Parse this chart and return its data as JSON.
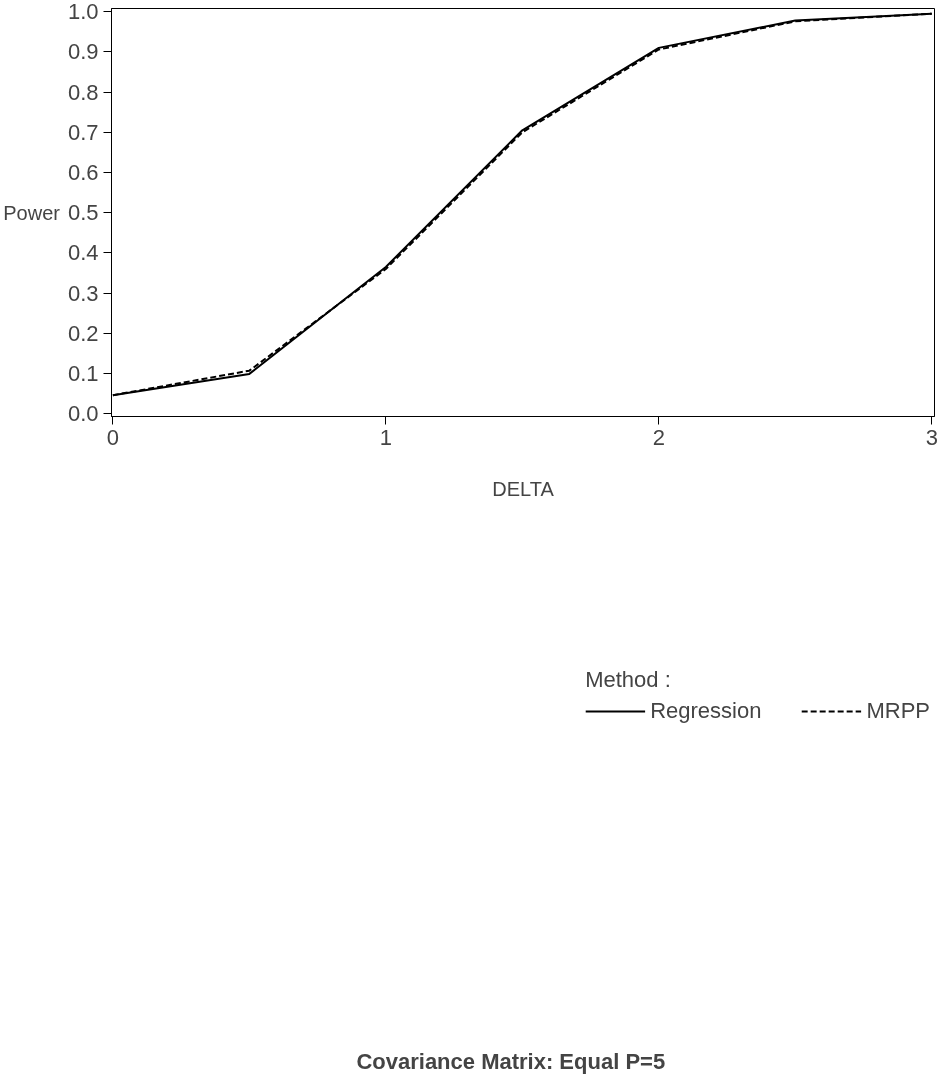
{
  "chart_data": {
    "type": "line",
    "title": "Covariance Matrix: Equal     P=5",
    "xlabel": "DELTA",
    "ylabel": "Power",
    "legend_title": "Method :",
    "x": [
      0,
      0.5,
      1,
      1.5,
      2,
      2.5,
      3
    ],
    "series": [
      {
        "name": "Regression",
        "color": "#000000",
        "line_style": "solid",
        "values": [
          0.046,
          0.099,
          0.365,
          0.705,
          0.91,
          0.978,
          0.995
        ]
      },
      {
        "name": "MRPP",
        "color": "#000000",
        "line_style": "dashed",
        "values": [
          0.046,
          0.107,
          0.36,
          0.7,
          0.906,
          0.976,
          0.995
        ]
      }
    ],
    "xlim": [
      -0.005,
      3.01
    ],
    "ylim": [
      -0.007,
      1.008
    ],
    "xticks": [
      0,
      1,
      2,
      3
    ],
    "yticks": [
      {
        "value": 0,
        "label": "0.0"
      },
      0.1,
      0.2,
      0.3,
      0.4,
      0.5,
      0.6,
      0.7,
      0.8,
      0.9,
      {
        "value": 1,
        "label": "1.0"
      }
    ],
    "grid": false,
    "legend": "bottom",
    "marker": "none"
  }
}
